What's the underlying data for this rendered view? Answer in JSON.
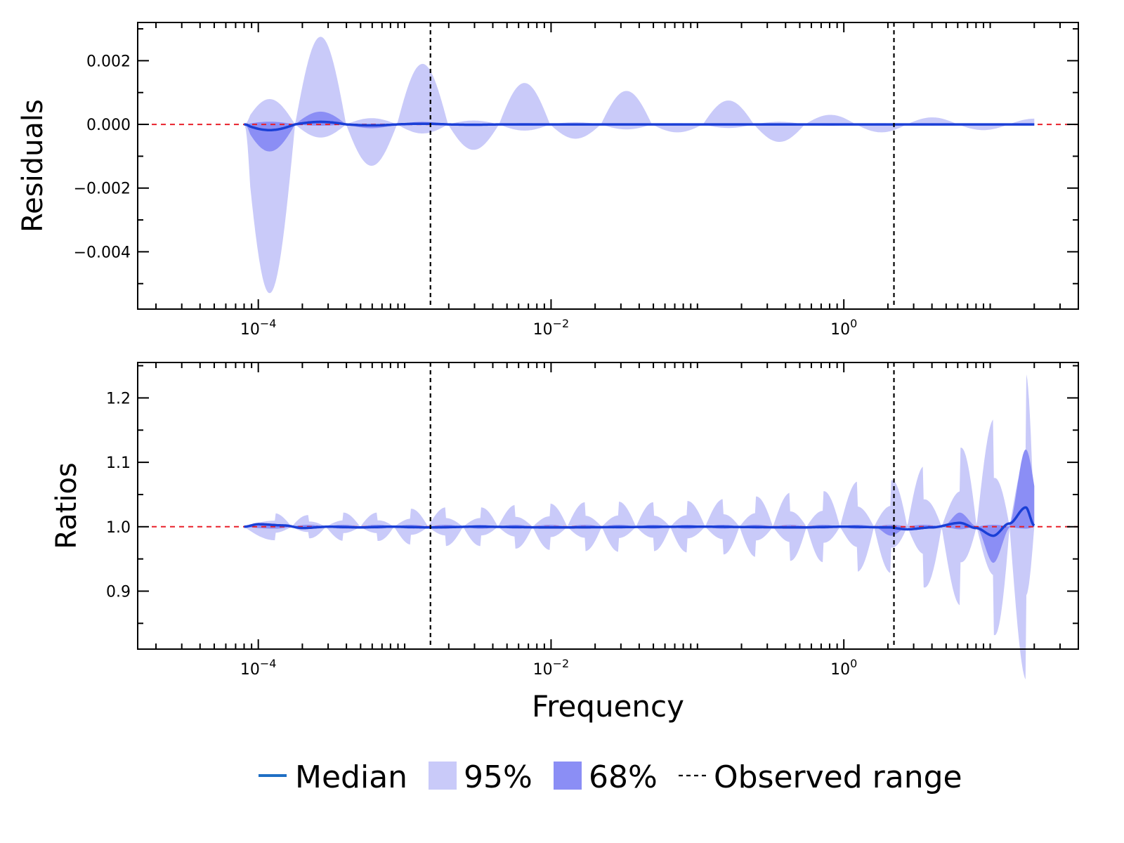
{
  "chart_data": [
    {
      "type": "area",
      "id": "residuals",
      "ylabel": "Residuals",
      "xlabel": "",
      "xscale": "log",
      "xlim": [
        1.5e-05,
        40
      ],
      "ylim": [
        -0.0058,
        0.0032
      ],
      "x_ticks": [
        {
          "value": 0.0001,
          "label": "10",
          "sup": "−4"
        },
        {
          "value": 0.01,
          "label": "10",
          "sup": "−2"
        },
        {
          "value": 1,
          "label": "10",
          "sup": "0"
        }
      ],
      "y_ticks": [
        {
          "value": 0.002,
          "label": "0.002"
        },
        {
          "value": 0.0,
          "label": "0.000"
        },
        {
          "value": -0.002,
          "label": "−0.002"
        },
        {
          "value": -0.004,
          "label": "−0.004"
        }
      ],
      "y_minor_step": 0.001,
      "reference_line": 0.0,
      "observed_range": [
        0.0015,
        2.2
      ],
      "data_range": [
        8e-05,
        20
      ],
      "band95": {
        "first_upper": 0.0,
        "first_lower": -0.0053,
        "lobes": [
          0.001,
          0.00275,
          0.0013,
          0.0019,
          0.0008,
          0.0013,
          0.00045,
          0.00105,
          0.00025,
          0.00075,
          0.00055,
          0.0003,
          0.00025,
          0.00022,
          0.00018
        ]
      },
      "band68": {
        "lobes": [
          -0.00085,
          0.0004,
          0.00012,
          8e-05,
          5e-05,
          4e-05,
          3e-05
        ]
      },
      "median": {
        "lobes": [
          -0.00018,
          8e-05,
          3e-05,
          2e-05,
          1e-05
        ]
      }
    },
    {
      "type": "area",
      "id": "ratios",
      "ylabel": "Ratios",
      "xlabel": "Frequency",
      "xscale": "log",
      "xlim": [
        1.5e-05,
        40
      ],
      "ylim": [
        0.81,
        1.255
      ],
      "x_ticks": [
        {
          "value": 0.0001,
          "label": "10",
          "sup": "−4"
        },
        {
          "value": 0.01,
          "label": "10",
          "sup": "−2"
        },
        {
          "value": 1,
          "label": "10",
          "sup": "0"
        }
      ],
      "y_ticks": [
        {
          "value": 1.2,
          "label": "1.2"
        },
        {
          "value": 1.1,
          "label": "1.1"
        },
        {
          "value": 1.0,
          "label": "1.0"
        },
        {
          "value": 0.9,
          "label": "0.9"
        }
      ],
      "y_minor_step": 0.05,
      "reference_line": 1.0,
      "observed_range": [
        0.0015,
        2.2
      ],
      "data_range": [
        8e-05,
        20
      ],
      "band95_peaks": [
        {
          "x": 0.00013,
          "dev": 0.021
        },
        {
          "x": 0.00022,
          "dev": 0.018
        },
        {
          "x": 0.00038,
          "dev": 0.022
        },
        {
          "x": 0.00065,
          "dev": 0.022
        },
        {
          "x": 0.0011,
          "dev": 0.028
        },
        {
          "x": 0.0019,
          "dev": 0.03
        },
        {
          "x": 0.0033,
          "dev": 0.03
        },
        {
          "x": 0.0057,
          "dev": 0.034
        },
        {
          "x": 0.0098,
          "dev": 0.036
        },
        {
          "x": 0.017,
          "dev": 0.038
        },
        {
          "x": 0.029,
          "dev": 0.039
        },
        {
          "x": 0.05,
          "dev": 0.038
        },
        {
          "x": 0.085,
          "dev": 0.04
        },
        {
          "x": 0.15,
          "dev": 0.043
        },
        {
          "x": 0.25,
          "dev": 0.047
        },
        {
          "x": 0.43,
          "dev": 0.053
        },
        {
          "x": 0.72,
          "dev": 0.055
        },
        {
          "x": 1.23,
          "dev": 0.07
        },
        {
          "x": 2.1,
          "dev": 0.072
        },
        {
          "x": 3.5,
          "dev": 0.094
        },
        {
          "x": 6.2,
          "dev": 0.122
        },
        {
          "x": 10.5,
          "dev": 0.167
        },
        {
          "x": 17.5,
          "dev": 0.238
        }
      ],
      "band68_peaks": [
        {
          "x": 2.1,
          "upper": 1.002,
          "lower": 0.986
        },
        {
          "x": 6.2,
          "upper": 1.022,
          "lower": 0.996
        },
        {
          "x": 10.5,
          "upper": 0.998,
          "lower": 0.944
        },
        {
          "x": 17.5,
          "upper": 1.12,
          "lower": 1.002
        }
      ],
      "median_points": [
        [
          8e-05,
          1.0
        ],
        [
          0.0001,
          1.004
        ],
        [
          0.00015,
          1.002
        ],
        [
          0.0002,
          0.998
        ],
        [
          0.0003,
          1.0
        ],
        [
          0.0005,
          0.999
        ],
        [
          0.0008,
          1.0
        ],
        [
          0.0015,
          0.999
        ],
        [
          0.003,
          1.0
        ],
        [
          0.01,
          0.999
        ],
        [
          0.1,
          1.0
        ],
        [
          0.5,
          0.999
        ],
        [
          1.0,
          1.0
        ],
        [
          2.0,
          0.999
        ],
        [
          2.7,
          0.996
        ],
        [
          4.0,
          0.999
        ],
        [
          6.2,
          1.006
        ],
        [
          8.0,
          0.998
        ],
        [
          10.5,
          0.986
        ],
        [
          13.5,
          1.005
        ],
        [
          17.5,
          1.03
        ],
        [
          20,
          1.002
        ]
      ]
    }
  ],
  "legend": {
    "items": [
      {
        "label": "Median",
        "kind": "line"
      },
      {
        "label": "95%",
        "kind": "patch95"
      },
      {
        "label": "68%",
        "kind": "patch68"
      },
      {
        "label": "Observed range",
        "kind": "dashed"
      }
    ]
  },
  "colors": {
    "band95": "#c9caf9",
    "band68": "#8b8ef5",
    "median": "#1a3fd6",
    "legend_median": "#1f6fc4",
    "reference": "#e8202a",
    "observed": "#000000"
  }
}
